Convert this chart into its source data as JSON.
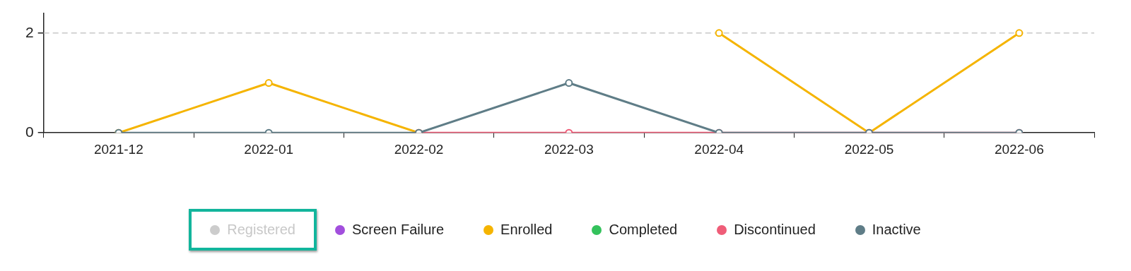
{
  "chart_data": {
    "type": "line",
    "categories": [
      "2021-12",
      "2022-01",
      "2022-02",
      "2022-03",
      "2022-04",
      "2022-05",
      "2022-06"
    ],
    "series": [
      {
        "name": "Registered",
        "color": "#cccccc",
        "values": [
          null,
          null,
          null,
          null,
          null,
          null,
          null
        ]
      },
      {
        "name": "Screen Failure",
        "color": "#a24fdd",
        "values": [
          null,
          null,
          null,
          null,
          null,
          null,
          null
        ]
      },
      {
        "name": "Enrolled",
        "color": "#f5b400",
        "values": [
          0,
          1,
          0,
          null,
          2,
          0,
          2
        ]
      },
      {
        "name": "Completed",
        "color": "#34c25c",
        "values": [
          null,
          null,
          null,
          null,
          null,
          null,
          null
        ]
      },
      {
        "name": "Discontinued",
        "color": "#ef5d78",
        "values": [
          null,
          null,
          0,
          0,
          0,
          0,
          0
        ]
      },
      {
        "name": "Inactive",
        "color": "#5f7d87",
        "values": [
          0,
          0,
          0,
          1,
          0,
          0,
          0
        ]
      }
    ],
    "ylim": [
      0,
      2.4
    ],
    "yticks": [
      0,
      2
    ],
    "ref_lines": [
      {
        "axis": "y",
        "value": 2,
        "color": "#c8c8c8",
        "line_style": "dashed"
      }
    ],
    "legend": "bottom",
    "marker": "circle",
    "line_style": "solid"
  }
}
